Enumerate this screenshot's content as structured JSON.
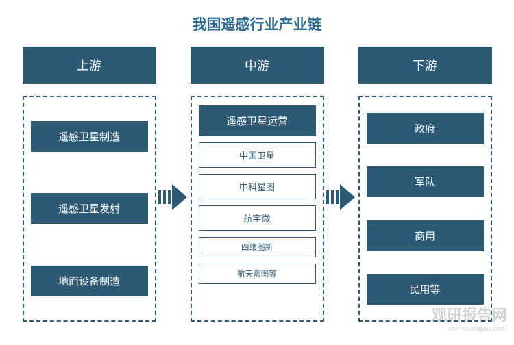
{
  "title": "我国遥感行业产业链",
  "colors": {
    "primary": "#2c5a75",
    "title_color": "#2b6a8f",
    "background": "#ffffff"
  },
  "columns": [
    {
      "header": "上游",
      "box_style": "left",
      "items": [
        {
          "text": "遥感卫星制造",
          "style": "filled"
        },
        {
          "text": "遥感卫星发射",
          "style": "filled"
        },
        {
          "text": "地面设备制造",
          "style": "filled"
        }
      ]
    },
    {
      "header": "中游",
      "box_style": "middle",
      "items": [
        {
          "text": "遥感卫星运营",
          "style": "filled"
        },
        {
          "text": "中国卫星",
          "style": "outlined"
        },
        {
          "text": "中科星图",
          "style": "outlined"
        },
        {
          "text": "航宇微",
          "style": "outlined"
        },
        {
          "text": "四维图新",
          "style": "outlined-small"
        },
        {
          "text": "航天宏图等",
          "style": "outlined-small"
        }
      ]
    },
    {
      "header": "下游",
      "box_style": "right",
      "items": [
        {
          "text": "政府",
          "style": "filled"
        },
        {
          "text": "军队",
          "style": "filled"
        },
        {
          "text": "商用",
          "style": "filled"
        },
        {
          "text": "民用等",
          "style": "filled"
        }
      ]
    }
  ],
  "watermark": {
    "main": "观研报告网",
    "sub": "chinabaogao.com"
  }
}
